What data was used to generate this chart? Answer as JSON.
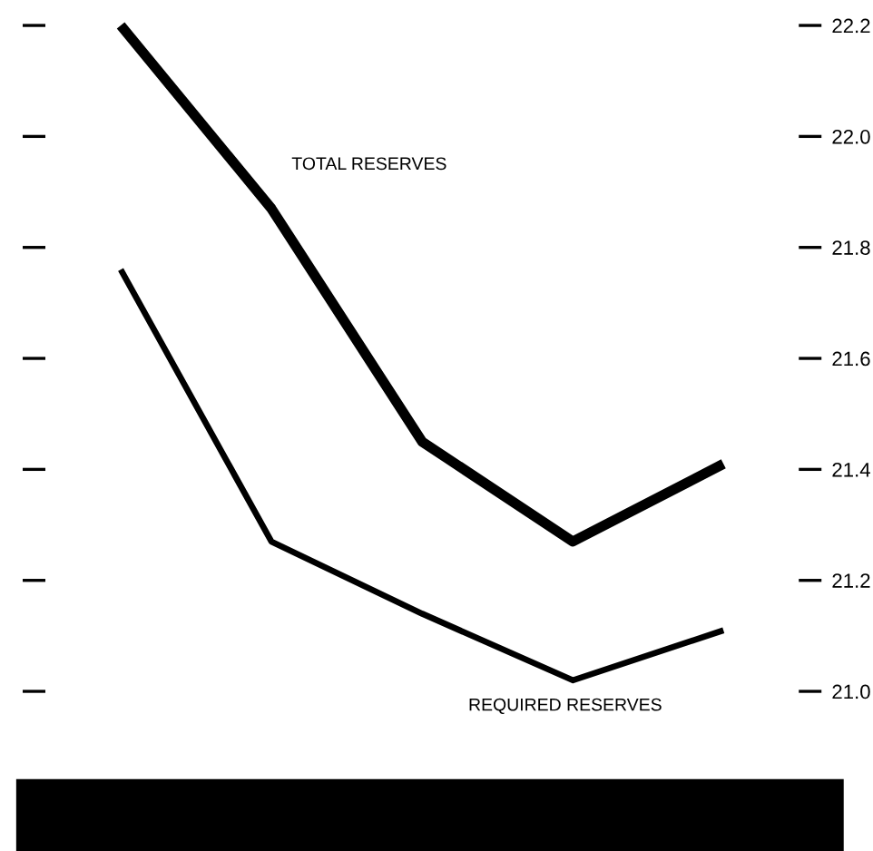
{
  "chart_data": {
    "type": "line",
    "categories": [
      null,
      null,
      null,
      null,
      null
    ],
    "series": [
      {
        "name": "TOTAL RESERVES",
        "color": "#000000",
        "values": [
          22.2,
          21.87,
          21.45,
          21.27,
          21.41
        ]
      },
      {
        "name": "REQUIRED RESERVES",
        "color": "#000000",
        "values": [
          21.76,
          21.27,
          21.14,
          21.02,
          21.11
        ]
      }
    ],
    "ylim": [
      21,
      22.2
    ],
    "yticks": [
      {
        "value": 21,
        "label": "21.0"
      },
      {
        "value": 21.2,
        "label": "21.2"
      },
      {
        "value": 21.4,
        "label": "21.4"
      },
      {
        "value": 21.6,
        "label": "21.6"
      },
      {
        "value": 21.8,
        "label": "21.8"
      },
      {
        "value": 22,
        "label": "22.0"
      },
      {
        "value": 22.2,
        "label": "22.2"
      }
    ],
    "grid": false,
    "legend": false,
    "marker": "none",
    "line_style": "solid"
  }
}
